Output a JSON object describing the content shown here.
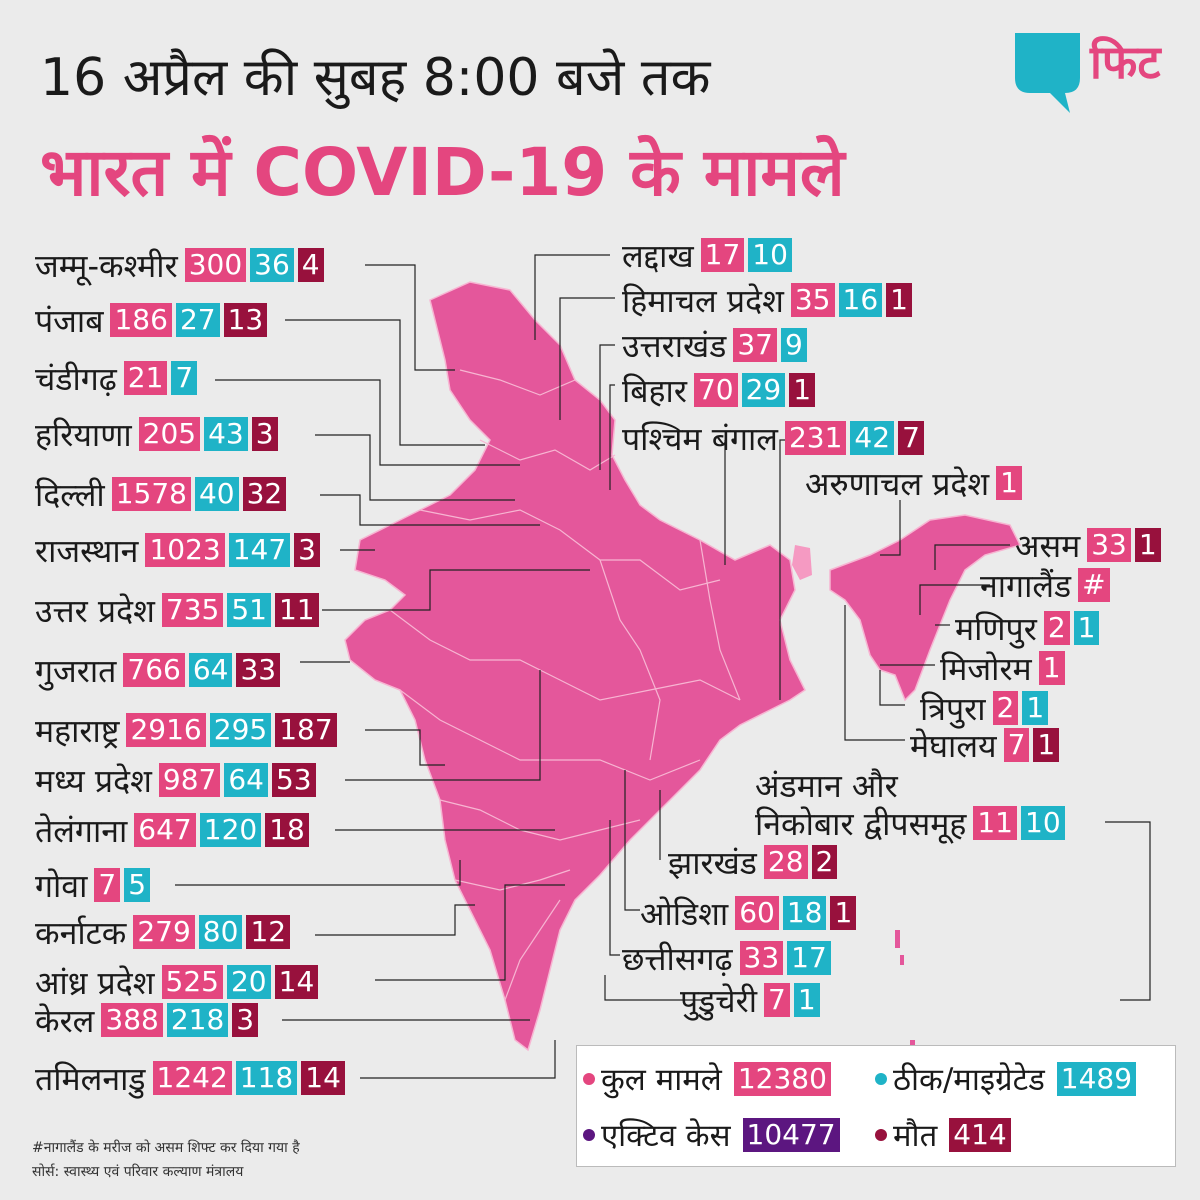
{
  "title_line1": "16 अप्रैल की सुबह 8:00 बजे तक",
  "title_line2": "भारत में COVID-19 के मामले",
  "logo_text": "फिट",
  "colors": {
    "total": "#e4467f",
    "recovered": "#1fb3c7",
    "deaths": "#98113d",
    "active": "#5c1680",
    "map": "#e4579b"
  },
  "states_left": [
    {
      "name": "जम्मू-कश्मीर",
      "total": "300",
      "recovered": "36",
      "deaths": "4"
    },
    {
      "name": "पंजाब",
      "total": "186",
      "recovered": "27",
      "deaths": "13"
    },
    {
      "name": "चंडीगढ़",
      "total": "21",
      "recovered": "7",
      "deaths": ""
    },
    {
      "name": "हरियाणा",
      "total": "205",
      "recovered": "43",
      "deaths": "3"
    },
    {
      "name": "दिल्ली",
      "total": "1578",
      "recovered": "40",
      "deaths": "32"
    },
    {
      "name": "राजस्थान",
      "total": "1023",
      "recovered": "147",
      "deaths": "3"
    },
    {
      "name": "उत्तर प्रदेश",
      "total": "735",
      "recovered": "51",
      "deaths": "11"
    },
    {
      "name": "गुजरात",
      "total": "766",
      "recovered": "64",
      "deaths": "33"
    },
    {
      "name": "महाराष्ट्र",
      "total": "2916",
      "recovered": "295",
      "deaths": "187"
    },
    {
      "name": "मध्य प्रदेश",
      "total": "987",
      "recovered": "64",
      "deaths": "53"
    },
    {
      "name": "तेलंगाना",
      "total": "647",
      "recovered": "120",
      "deaths": "18"
    },
    {
      "name": "गोवा",
      "total": "7",
      "recovered": "5",
      "deaths": ""
    },
    {
      "name": "कर्नाटक",
      "total": "279",
      "recovered": "80",
      "deaths": "12"
    },
    {
      "name": "आंध्र प्रदेश",
      "total": "525",
      "recovered": "20",
      "deaths": "14"
    },
    {
      "name": "केरल",
      "total": "388",
      "recovered": "218",
      "deaths": "3"
    },
    {
      "name": "तमिलनाडु",
      "total": "1242",
      "recovered": "118",
      "deaths": "14"
    }
  ],
  "states_right": [
    {
      "name": "लद्दाख",
      "total": "17",
      "recovered": "10",
      "deaths": ""
    },
    {
      "name": "हिमाचल प्रदेश",
      "total": "35",
      "recovered": "16",
      "deaths": "1"
    },
    {
      "name": "उत्तराखंड",
      "total": "37",
      "recovered": "9",
      "deaths": ""
    },
    {
      "name": "बिहार",
      "total": "70",
      "recovered": "29",
      "deaths": "1"
    },
    {
      "name": "पश्चिम बंगाल",
      "total": "231",
      "recovered": "42",
      "deaths": "7"
    },
    {
      "name": "अरुणाचल प्रदेश",
      "total": "1",
      "recovered": "",
      "deaths": ""
    },
    {
      "name": "असम",
      "total": "33",
      "recovered": "",
      "deaths": "1"
    },
    {
      "name": "नागालैंड",
      "total": "#",
      "recovered": "",
      "deaths": ""
    },
    {
      "name": "मणिपुर",
      "total": "2",
      "recovered": "1",
      "deaths": ""
    },
    {
      "name": "मिजोरम",
      "total": "1",
      "recovered": "",
      "deaths": ""
    },
    {
      "name": "त्रिपुरा",
      "total": "2",
      "recovered": "1",
      "deaths": ""
    },
    {
      "name": "मेघालय",
      "total": "7",
      "recovered": "",
      "deaths": "1"
    },
    {
      "name": "अंडमान और",
      "total": "",
      "recovered": "",
      "deaths": ""
    },
    {
      "name": "निकोबार द्वीपसमूह",
      "total": "11",
      "recovered": "10",
      "deaths": ""
    },
    {
      "name": "झारखंड",
      "total": "28",
      "recovered": "",
      "deaths": "2"
    },
    {
      "name": "ओडिशा",
      "total": "60",
      "recovered": "18",
      "deaths": "1"
    },
    {
      "name": "छत्तीसगढ़",
      "total": "33",
      "recovered": "17",
      "deaths": ""
    },
    {
      "name": "पुडुचेरी",
      "total": "7",
      "recovered": "1",
      "deaths": ""
    }
  ],
  "legend": {
    "total_label": "कुल मामले",
    "total_value": "12380",
    "recovered_label": "ठीक/माइग्रेटेड",
    "recovered_value": "1489",
    "active_label": "एक्टिव केस",
    "active_value": "10477",
    "deaths_label": "मौत",
    "deaths_value": "414"
  },
  "footnote": "#नागालैंड के मरीज को असम शिफ्ट कर दिया गया है",
  "source": "सोर्स: स्वास्थ्य एवं परिवार कल्याण मंत्रालय"
}
